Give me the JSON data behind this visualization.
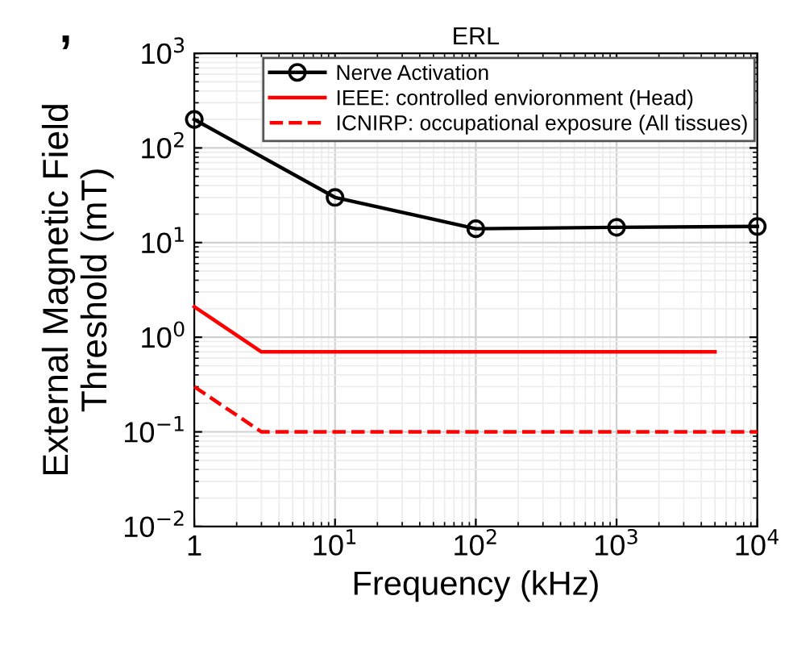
{
  "chart_data": {
    "type": "line",
    "title": "ERL",
    "xlabel": "Frequency (kHz)",
    "ylabel": "External Magnetic Field\nThreshold (mT)",
    "annotations": [
      ","
    ],
    "log": "xy",
    "grid": true,
    "legend": "top right",
    "xlim": [
      1,
      10000
    ],
    "ylim": [
      0.01,
      1000
    ],
    "xticks": [
      {
        "value": 1,
        "label": "1"
      },
      {
        "value": 10,
        "label": "10$^{1}$"
      },
      {
        "value": 100,
        "label": "10$^{2}$"
      },
      {
        "value": 1000,
        "label": "10$^{3}$"
      },
      {
        "value": 10000,
        "label": "10$^{4}$"
      }
    ],
    "yticks": [
      {
        "value": 0.01,
        "label": "10$^{−2}$"
      },
      {
        "value": 0.1,
        "label": "10$^{−1}$"
      },
      {
        "value": 1,
        "label": "10$^{0}$"
      },
      {
        "value": 10,
        "label": "10$^{1}$"
      },
      {
        "value": 100,
        "label": "10$^{2}$"
      },
      {
        "value": 1000,
        "label": "10$^{3}$"
      }
    ],
    "series": [
      {
        "name": "Nerve Activation",
        "color": "#000000",
        "marker": "circle",
        "line_style": "solid",
        "x": [
          1,
          10,
          100,
          1000,
          10000
        ],
        "values": [
          200,
          30,
          14,
          14.5,
          14.8
        ]
      },
      {
        "name": "IEEE: controlled envioronment (Head)",
        "color": "#ff0000",
        "marker": "none",
        "line_style": "solid",
        "x": [
          1,
          3,
          5000
        ],
        "values": [
          2.1,
          0.7,
          0.7
        ]
      },
      {
        "name": "ICNIRP: occupational exposure (All tissues)",
        "color": "#ff0000",
        "marker": "none",
        "line_style": "dashed",
        "x": [
          1,
          3,
          10000
        ],
        "values": [
          0.3,
          0.1,
          0.1
        ]
      }
    ]
  }
}
